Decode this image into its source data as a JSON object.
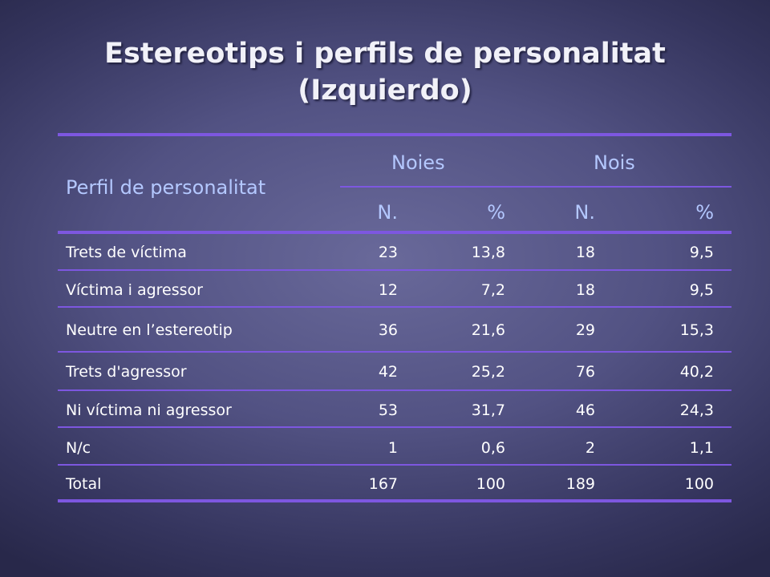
{
  "title": {
    "line1": "Estereotips i perfils de personalitat",
    "line2": "(Izquierdo)"
  },
  "table": {
    "row_header_label": "Perfil de personalitat",
    "group_headers": [
      "Noies",
      "Nois"
    ],
    "sub_headers": [
      "N.",
      "%",
      "N.",
      "%"
    ],
    "rows": [
      {
        "label": "Trets de víctima",
        "values": [
          "23",
          "13,8",
          "18",
          "9,5"
        ]
      },
      {
        "label": "Víctima i agressor",
        "values": [
          "12",
          "7,2",
          "18",
          "9,5"
        ]
      },
      {
        "label": "Neutre en l’estereotip",
        "values": [
          "36",
          "21,6",
          "29",
          "15,3"
        ]
      },
      {
        "label": "Trets d'agressor",
        "values": [
          "42",
          "25,2",
          "76",
          "40,2"
        ]
      },
      {
        "label": "Ni víctima ni agressor",
        "values": [
          "53",
          "31,7",
          "46",
          "24,3"
        ]
      },
      {
        "label": "N/c",
        "values": [
          "1",
          "0,6",
          "2",
          "1,1"
        ]
      },
      {
        "label": "Total",
        "values": [
          "167",
          "100",
          "189",
          "100"
        ]
      }
    ]
  },
  "colors": {
    "background": "#525283",
    "rule": "#7d57e0",
    "header_text": "#b4c8ff",
    "body_text": "#ffffff"
  }
}
